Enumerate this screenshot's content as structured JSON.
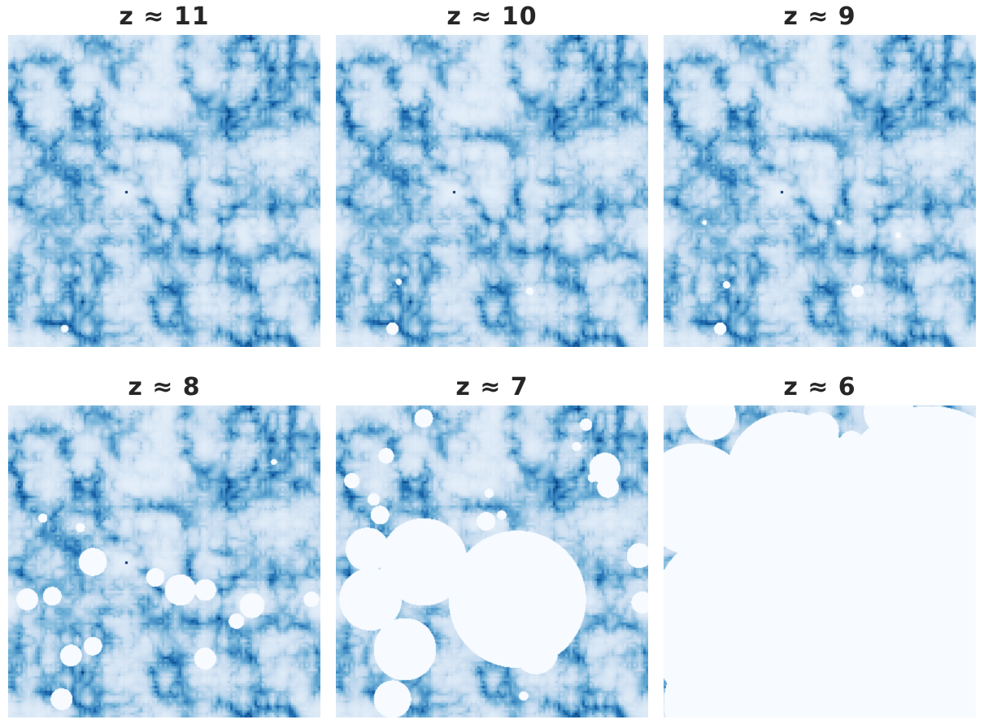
{
  "chart_data": [
    {
      "type": "heatmap",
      "title": "z ≈ 11",
      "redshift": 11,
      "colormap": "Blues",
      "ionized_bubbles": [
        [
          0.18,
          0.94,
          0.012
        ],
        [
          0.5,
          0.5,
          0.0
        ]
      ]
    },
    {
      "type": "heatmap",
      "title": "z ≈ 10",
      "redshift": 10,
      "colormap": "Blues",
      "ionized_bubbles": [
        [
          0.18,
          0.94,
          0.02
        ],
        [
          0.62,
          0.82,
          0.012
        ],
        [
          0.2,
          0.79,
          0.01
        ]
      ]
    },
    {
      "type": "heatmap",
      "title": "z ≈ 9",
      "redshift": 9,
      "colormap": "Blues",
      "ionized_bubbles": [
        [
          0.18,
          0.94,
          0.02
        ],
        [
          0.62,
          0.82,
          0.02
        ],
        [
          0.2,
          0.8,
          0.012
        ],
        [
          0.75,
          0.64,
          0.01
        ],
        [
          0.56,
          0.6,
          0.008
        ],
        [
          0.13,
          0.6,
          0.008
        ]
      ]
    },
    {
      "type": "heatmap",
      "title": "z ≈ 8",
      "redshift": 8,
      "colormap": "Blues",
      "ionized_bubbles": [
        [
          0.27,
          0.5,
          0.045
        ],
        [
          0.55,
          0.59,
          0.05
        ],
        [
          0.47,
          0.55,
          0.03
        ],
        [
          0.63,
          0.59,
          0.035
        ],
        [
          0.78,
          0.64,
          0.04
        ],
        [
          0.06,
          0.62,
          0.035
        ],
        [
          0.14,
          0.61,
          0.03
        ],
        [
          0.2,
          0.8,
          0.035
        ],
        [
          0.27,
          0.77,
          0.03
        ],
        [
          0.63,
          0.81,
          0.035
        ],
        [
          0.17,
          0.94,
          0.035
        ],
        [
          0.73,
          0.69,
          0.025
        ],
        [
          0.97,
          0.62,
          0.025
        ],
        [
          0.23,
          0.39,
          0.015
        ],
        [
          0.11,
          0.36,
          0.015
        ],
        [
          0.85,
          0.18,
          0.01
        ]
      ]
    },
    {
      "type": "heatmap",
      "title": "z ≈ 7",
      "redshift": 7,
      "colormap": "Blues",
      "ionized_bubbles": [
        [
          0.28,
          0.5,
          0.14
        ],
        [
          0.1,
          0.46,
          0.07
        ],
        [
          0.11,
          0.62,
          0.1
        ],
        [
          0.58,
          0.62,
          0.22
        ],
        [
          0.22,
          0.78,
          0.1
        ],
        [
          0.64,
          0.79,
          0.07
        ],
        [
          0.18,
          0.94,
          0.06
        ],
        [
          0.48,
          0.37,
          0.03
        ],
        [
          0.24,
          0.46,
          0.04
        ],
        [
          0.14,
          0.35,
          0.03
        ],
        [
          0.16,
          0.16,
          0.025
        ],
        [
          0.28,
          0.04,
          0.03
        ],
        [
          0.86,
          0.2,
          0.05
        ],
        [
          0.87,
          0.26,
          0.035
        ],
        [
          0.97,
          0.48,
          0.04
        ],
        [
          0.98,
          0.63,
          0.035
        ],
        [
          0.8,
          0.06,
          0.02
        ],
        [
          0.05,
          0.24,
          0.025
        ],
        [
          0.12,
          0.3,
          0.02
        ],
        [
          0.49,
          0.28,
          0.015
        ],
        [
          0.77,
          0.13,
          0.015
        ],
        [
          0.82,
          0.23,
          0.015
        ],
        [
          0.53,
          0.35,
          0.015
        ],
        [
          0.6,
          0.93,
          0.015
        ]
      ]
    },
    {
      "type": "heatmap",
      "title": "z ≈ 6",
      "redshift": 6,
      "colormap": "Blues",
      "ionized_bubbles": [
        [
          0.58,
          0.6,
          0.44
        ],
        [
          0.28,
          0.7,
          0.33
        ],
        [
          0.85,
          0.3,
          0.3
        ],
        [
          0.4,
          0.22,
          0.2
        ],
        [
          0.1,
          0.3,
          0.18
        ],
        [
          0.5,
          0.08,
          0.06
        ],
        [
          0.55,
          0.8,
          0.35
        ],
        [
          0.9,
          0.75,
          0.3
        ],
        [
          0.2,
          0.95,
          0.2
        ],
        [
          0.45,
          0.95,
          0.25
        ],
        [
          0.15,
          0.03,
          0.08
        ],
        [
          0.72,
          0.02,
          0.08
        ],
        [
          0.33,
          0.1,
          0.05
        ],
        [
          0.6,
          0.12,
          0.04
        ]
      ]
    }
  ]
}
